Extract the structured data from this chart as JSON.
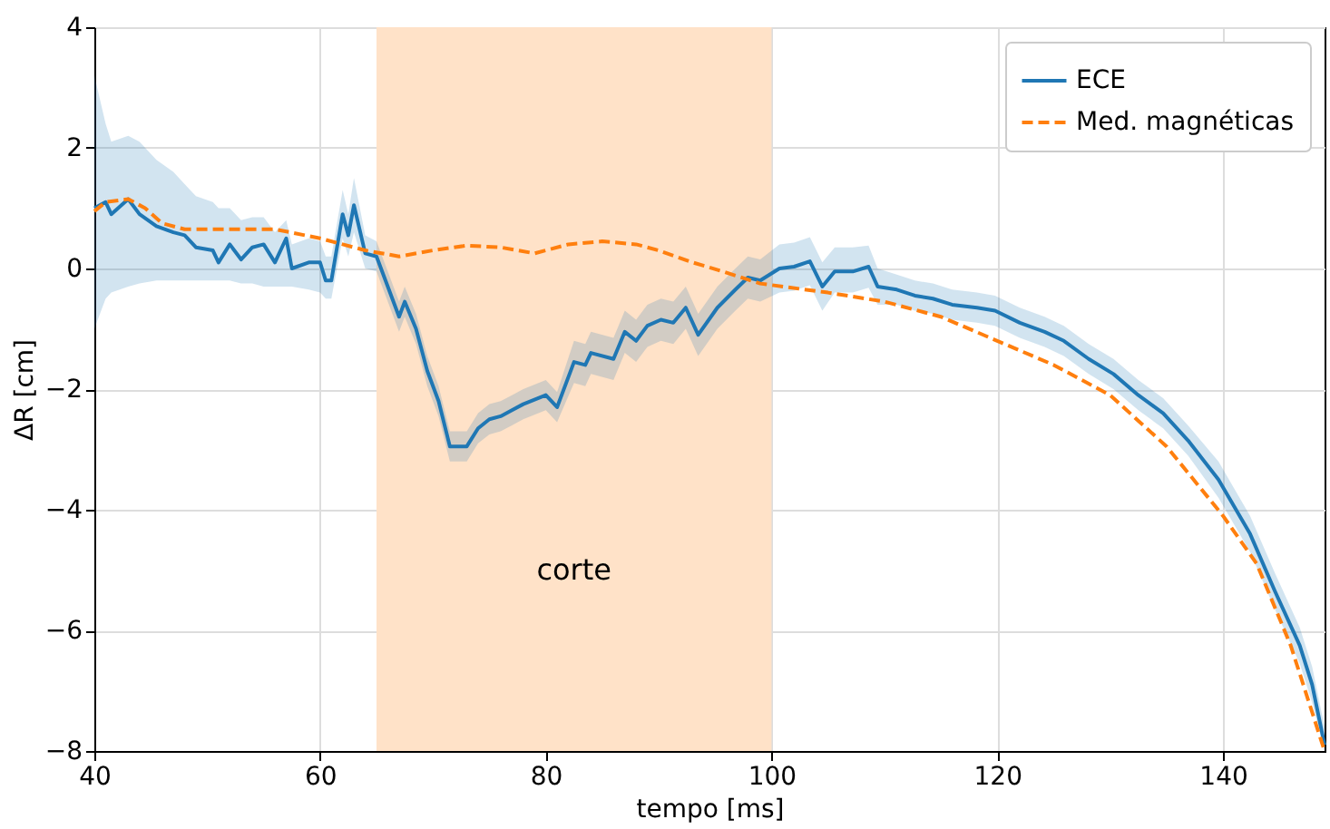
{
  "chart_data": {
    "type": "line",
    "xlabel": "tempo [ms]",
    "ylabel": "ΔR  [cm]",
    "xlim": [
      40,
      149
    ],
    "ylim": [
      -8,
      4
    ],
    "xticks": [
      40,
      60,
      80,
      100,
      120,
      140
    ],
    "yticks": [
      -8,
      -6,
      -4,
      -2,
      0,
      2,
      4
    ],
    "grid": true,
    "legend": "top right",
    "bands": [
      {
        "axis": "x",
        "from": 65,
        "to": 100,
        "label": "corte",
        "color": "#ffe2c8"
      }
    ],
    "series": [
      {
        "name": "ECE",
        "color": "#1f77b4",
        "line_style": "solid",
        "x": [
          40,
          41,
          41.5,
          43,
          44,
          45.5,
          47,
          48,
          49,
          50.5,
          51,
          52,
          53,
          54,
          55,
          56,
          57,
          57.5,
          59,
          60,
          60.5,
          61,
          62,
          62.5,
          63,
          64,
          65,
          66,
          67,
          67.5,
          68.5,
          69.5,
          70.5,
          71.5,
          73,
          74,
          75,
          76,
          77,
          78,
          80,
          81,
          82.5,
          83.5,
          84,
          86,
          87,
          88,
          89,
          90.2,
          91.3,
          92.4,
          93.5,
          95.2,
          96.8,
          97.9,
          99,
          100.7,
          102,
          103.4,
          104.5,
          105.6,
          107.2,
          108.6,
          109.4,
          111.1,
          112.7,
          114.3,
          116,
          118.2,
          119.8,
          122,
          124.2,
          125.9,
          128.1,
          130.3,
          132.5,
          134.7,
          136.9,
          139.6,
          142.4,
          144.6,
          146.8,
          147.9,
          149
        ],
        "values": [
          1.0,
          1.1,
          0.9,
          1.15,
          0.9,
          0.7,
          0.6,
          0.55,
          0.35,
          0.3,
          0.1,
          0.4,
          0.15,
          0.35,
          0.4,
          0.1,
          0.5,
          0,
          0.1,
          0.1,
          -0.2,
          -0.2,
          0.9,
          0.55,
          1.05,
          0.25,
          0.2,
          -0.3,
          -0.8,
          -0.55,
          -1.0,
          -1.7,
          -2.2,
          -2.95,
          -2.95,
          -2.65,
          -2.5,
          -2.45,
          -2.35,
          -2.25,
          -2.1,
          -2.3,
          -1.55,
          -1.6,
          -1.4,
          -1.5,
          -1.05,
          -1.2,
          -0.95,
          -0.85,
          -0.9,
          -0.65,
          -1.1,
          -0.65,
          -0.35,
          -0.15,
          -0.2,
          0,
          0.03,
          0.12,
          -0.3,
          -0.05,
          -0.05,
          0.03,
          -0.3,
          -0.35,
          -0.45,
          -0.5,
          -0.6,
          -0.65,
          -0.7,
          -0.9,
          -1.05,
          -1.2,
          -1.5,
          -1.75,
          -2.1,
          -2.4,
          -2.85,
          -3.5,
          -4.4,
          -5.35,
          -6.25,
          -6.9,
          -7.9
        ],
        "lower": [
          -1.0,
          -0.5,
          -0.4,
          -0.3,
          -0.25,
          -0.2,
          -0.2,
          -0.2,
          -0.2,
          -0.2,
          -0.2,
          -0.2,
          -0.25,
          -0.25,
          -0.3,
          -0.3,
          -0.3,
          -0.3,
          -0.35,
          -0.4,
          -0.5,
          -0.5,
          0.5,
          0.2,
          0.6,
          0,
          -0.05,
          -0.55,
          -1.05,
          -0.8,
          -1.25,
          -1.95,
          -2.45,
          -3.2,
          -3.2,
          -2.9,
          -2.75,
          -2.7,
          -2.6,
          -2.5,
          -2.35,
          -2.55,
          -1.9,
          -1.95,
          -1.75,
          -1.85,
          -1.4,
          -1.55,
          -1.3,
          -1.2,
          -1.25,
          -1.0,
          -1.45,
          -1.0,
          -0.7,
          -0.5,
          -0.55,
          -0.4,
          -0.37,
          -0.28,
          -0.7,
          -0.4,
          -0.4,
          -0.32,
          -0.6,
          -0.6,
          -0.7,
          -0.75,
          -0.85,
          -0.9,
          -0.95,
          -1.15,
          -1.3,
          -1.45,
          -1.75,
          -2.0,
          -2.35,
          -2.65,
          -3.1,
          -3.8,
          -4.7,
          -5.65,
          -6.55,
          -7.2,
          -8.0
        ],
        "upper": [
          3.2,
          2.4,
          2.1,
          2.2,
          2.1,
          1.8,
          1.6,
          1.4,
          1.2,
          1.1,
          1.0,
          1.0,
          0.8,
          0.85,
          0.85,
          0.6,
          0.8,
          0.4,
          0.5,
          0.45,
          0.2,
          0.2,
          1.3,
          0.9,
          1.5,
          0.55,
          0.45,
          -0.05,
          -0.55,
          -0.3,
          -0.75,
          -1.45,
          -1.95,
          -2.7,
          -2.7,
          -2.4,
          -2.25,
          -2.2,
          -2.1,
          -2.0,
          -1.85,
          -2.05,
          -1.2,
          -1.25,
          -1.05,
          -1.15,
          -0.7,
          -0.85,
          -0.6,
          -0.5,
          -0.55,
          -0.3,
          -0.75,
          -0.3,
          0,
          0.2,
          0.15,
          0.4,
          0.43,
          0.52,
          0.1,
          0.35,
          0.35,
          0.38,
          0,
          -0.1,
          -0.2,
          -0.25,
          -0.35,
          -0.4,
          -0.45,
          -0.65,
          -0.8,
          -0.95,
          -1.25,
          -1.5,
          -1.85,
          -2.15,
          -2.6,
          -3.2,
          -4.1,
          -5.05,
          -5.95,
          -6.6,
          -7.6
        ]
      },
      {
        "name": "Med. magnéticas",
        "color": "#ff7f0e",
        "line_style": "dashed",
        "x": [
          40,
          41,
          43,
          44.5,
          46,
          48,
          52,
          56,
          60,
          64,
          67,
          70,
          73,
          76,
          79,
          82,
          85,
          88,
          90,
          93,
          95.7,
          99,
          105,
          110,
          115,
          120,
          125,
          130,
          135,
          140,
          143,
          146,
          149
        ],
        "values": [
          0.95,
          1.1,
          1.15,
          1.0,
          0.75,
          0.65,
          0.65,
          0.65,
          0.5,
          0.3,
          0.2,
          0.3,
          0.38,
          0.35,
          0.25,
          0.4,
          0.45,
          0.4,
          0.3,
          0.1,
          -0.05,
          -0.25,
          -0.4,
          -0.55,
          -0.8,
          -1.2,
          -1.6,
          -2.1,
          -2.95,
          -4.1,
          -4.9,
          -6.25,
          -8.0
        ]
      }
    ]
  }
}
